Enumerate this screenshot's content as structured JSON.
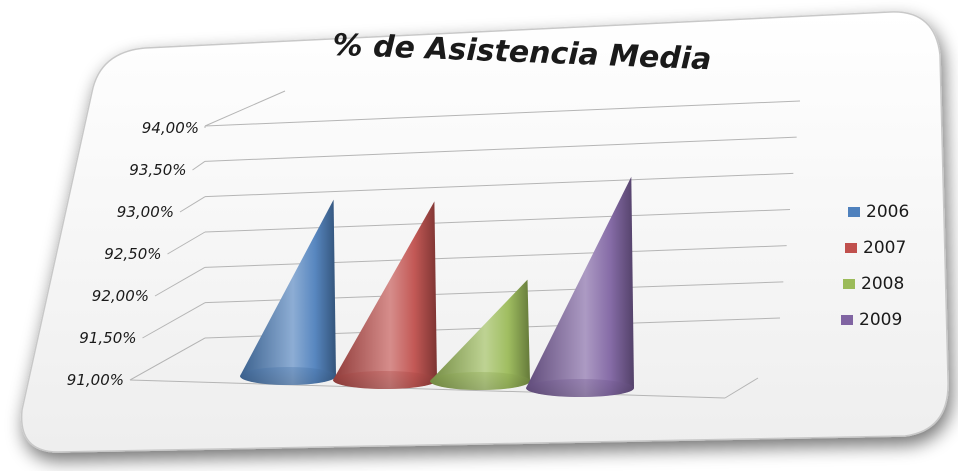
{
  "chart_data": {
    "type": "bar",
    "title": "% de Asistencia Media",
    "xlabel": "",
    "ylabel": "",
    "ylim": [
      91.0,
      94.0
    ],
    "y_ticks": [
      "91,00%",
      "91,50%",
      "92,00%",
      "92,50%",
      "93,00%",
      "93,50%",
      "94,00%"
    ],
    "y_tick_values": [
      91.0,
      91.5,
      92.0,
      92.5,
      93.0,
      93.5,
      94.0
    ],
    "categories": [
      "2006",
      "2007",
      "2008",
      "2009"
    ],
    "values": [
      93.2,
      93.2,
      92.1,
      93.6
    ],
    "mark_shape": "cone",
    "grid": true,
    "legend_position": "right",
    "series": [
      {
        "name": "2006",
        "value": 93.2,
        "color": "#4f81bd"
      },
      {
        "name": "2007",
        "value": 93.2,
        "color": "#c0504d"
      },
      {
        "name": "2008",
        "value": 92.1,
        "color": "#9bbb59"
      },
      {
        "name": "2009",
        "value": 93.6,
        "color": "#8064a2"
      }
    ]
  }
}
